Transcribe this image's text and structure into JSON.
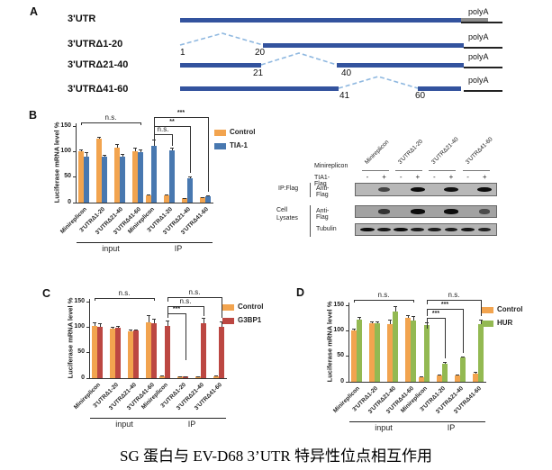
{
  "panels": {
    "a": "A",
    "b": "B",
    "c": "C",
    "d": "D"
  },
  "panel_a": {
    "rows": [
      {
        "label": "3'UTR",
        "polya": "polyA"
      },
      {
        "label": "3'UTRΔ1-20",
        "polya": "polyA",
        "n1": "1",
        "n2": "20"
      },
      {
        "label": "3'UTRΔ21-40",
        "polya": "polyA",
        "n1": "21",
        "n2": "40"
      },
      {
        "label": "3'UTRΔ41-60",
        "polya": "polyA",
        "n1": "41",
        "n2": "60"
      }
    ]
  },
  "chart_data": [
    {
      "id": "b",
      "type": "bar",
      "panel": "B",
      "title": "",
      "ylabel": "Luciferase mRNA level %",
      "yticks": [
        0,
        50,
        100,
        150
      ],
      "ylim": [
        0,
        150
      ],
      "categories": [
        "Minireplicon",
        "3'UTRΔ1-20",
        "3'UTRΔ21-40",
        "3'UTRΔ41-60"
      ],
      "groups": [
        {
          "label": "input",
          "series": [
            {
              "name": "Control",
              "color": "#F2A44F",
              "values": [
                100,
                126,
                107,
                100
              ],
              "errors": [
                4,
                3,
                7,
                8
              ]
            },
            {
              "name": "TIA-1",
              "color": "#4878B0",
              "values": [
                90,
                90,
                90,
                99
              ],
              "errors": [
                9,
                3,
                5,
                6
              ]
            }
          ]
        },
        {
          "label": "IP",
          "series": [
            {
              "name": "Control",
              "color": "#F2A44F",
              "values": [
                14,
                14,
                8,
                10
              ],
              "errors": [
                2,
                2,
                1,
                1
              ]
            },
            {
              "name": "TIA-1",
              "color": "#4878B0",
              "values": [
                111,
                102,
                48,
                12
              ],
              "errors": [
                13,
                5,
                3,
                2
              ]
            }
          ]
        }
      ],
      "legend": [
        {
          "label": "Control",
          "color": "#F2A44F"
        },
        {
          "label": "TIA-1",
          "color": "#4878B0"
        }
      ],
      "significance": [
        {
          "label": "n.s.",
          "over": "input"
        },
        {
          "label": "n.s.",
          "between": [
            "Minireplicon IP",
            "3'UTRΔ1-20 IP"
          ]
        },
        {
          "label": "**",
          "between": [
            "Minireplicon IP",
            "3'UTRΔ21-40 IP"
          ]
        },
        {
          "label": "***",
          "between": [
            "Minireplicon IP",
            "3'UTRΔ41-60 IP"
          ]
        }
      ]
    },
    {
      "id": "c",
      "type": "bar",
      "panel": "C",
      "title": "",
      "ylabel": "Luciferase mRNA level %",
      "yticks": [
        0,
        50,
        100,
        150
      ],
      "ylim": [
        0,
        150
      ],
      "categories": [
        "Minireplicon",
        "3'UTRΔ1-20",
        "3'UTRΔ21-40",
        "3'UTRΔ41-60"
      ],
      "groups": [
        {
          "label": "input",
          "series": [
            {
              "name": "Control",
              "color": "#F2A44F",
              "values": [
                102,
                97,
                92,
                109
              ],
              "errors": [
                8,
                4,
                3,
                15
              ]
            },
            {
              "name": "G3BP1",
              "color": "#BC4742",
              "values": [
                100,
                98,
                93,
                108
              ],
              "errors": [
                7,
                4,
                2,
                8
              ]
            }
          ]
        },
        {
          "label": "IP",
          "series": [
            {
              "name": "Control",
              "color": "#F2A44F",
              "values": [
                4,
                3,
                3,
                4
              ],
              "errors": [
                1,
                1,
                1,
                1
              ]
            },
            {
              "name": "G3BP1",
              "color": "#BC4742",
              "values": [
                103,
                3,
                107,
                101
              ],
              "errors": [
                10,
                1,
                12,
                10
              ]
            }
          ]
        }
      ],
      "legend": [
        {
          "label": "Control",
          "color": "#F2A44F"
        },
        {
          "label": "G3BP1",
          "color": "#BC4742"
        }
      ],
      "significance": [
        {
          "label": "n.s.",
          "over": "input"
        },
        {
          "label": "n.s.",
          "between": [
            "Minireplicon IP",
            "3'UTRΔ41-60 IP"
          ]
        },
        {
          "label": "n.s.",
          "between": [
            "Minireplicon IP",
            "3'UTRΔ21-40 IP"
          ]
        },
        {
          "label": "***",
          "between": [
            "Minireplicon IP",
            "3'UTRΔ1-20 IP"
          ]
        }
      ]
    },
    {
      "id": "d",
      "type": "bar",
      "panel": "D",
      "title": "",
      "ylabel": "Luciferase mRNA level %",
      "yticks": [
        0,
        50,
        100,
        150
      ],
      "ylim": [
        0,
        150
      ],
      "categories": [
        "Minireplicon",
        "3'UTRΔ1-20",
        "3'UTRΔ21-40",
        "3'UTRΔ41-60"
      ],
      "groups": [
        {
          "label": "input",
          "series": [
            {
              "name": "Control",
              "color": "#F2A44F",
              "values": [
                101,
                114,
                113,
                125
              ],
              "errors": [
                4,
                5,
                8,
                6
              ]
            },
            {
              "name": "HUR",
              "color": "#93B952",
              "values": [
                122,
                114,
                138,
                120
              ],
              "errors": [
                5,
                4,
                10,
                8
              ]
            }
          ]
        },
        {
          "label": "IP",
          "series": [
            {
              "name": "Control",
              "color": "#F2A44F",
              "values": [
                9,
                12,
                12,
                16
              ],
              "errors": [
                2,
                2,
                2,
                3
              ]
            },
            {
              "name": "HUR",
              "color": "#93B952",
              "values": [
                111,
                35,
                47,
                113
              ],
              "errors": [
                6,
                3,
                3,
                8
              ]
            }
          ]
        }
      ],
      "legend": [
        {
          "label": "Control",
          "color": "#F2A44F"
        },
        {
          "label": "HUR",
          "color": "#93B952"
        }
      ],
      "significance": [
        {
          "label": "n.s.",
          "over": "input"
        },
        {
          "label": "n.s.",
          "between": [
            "Minireplicon IP",
            "3'UTRΔ41-60 IP"
          ]
        },
        {
          "label": "***",
          "between": [
            "Minireplicon IP",
            "3'UTRΔ21-40 IP"
          ]
        },
        {
          "label": "***",
          "between": [
            "Minireplicon IP",
            "3'UTRΔ1-20 IP"
          ]
        }
      ]
    }
  ],
  "blot": {
    "construct_labels": [
      "Minireplicon",
      "3'UTRΔ1-20",
      "3'UTRΔ21-40",
      "3'UTRΔ41-60"
    ],
    "row_minireplicon": "Minireplicon",
    "row_tia1flag": "TIA1-Flag",
    "lane_signs": [
      "-",
      "+",
      "-",
      "+",
      "-",
      "+",
      "-",
      "+"
    ],
    "groups": [
      {
        "label": "IP:Flag"
      },
      {
        "label": "Cell Lysates"
      }
    ],
    "rows": [
      {
        "antibody": "Anti-Flag",
        "bands": [
          0,
          0.5,
          0,
          1,
          0,
          0.95,
          0,
          1
        ]
      },
      {
        "antibody": "Anti-Flag",
        "bands": [
          0,
          0.6,
          0,
          1,
          0,
          1,
          0,
          0.35
        ]
      },
      {
        "antibody": "Tubulin",
        "bands": [
          1,
          0.9,
          1,
          0.85,
          0.85,
          0.85,
          0.9,
          0.8
        ]
      }
    ]
  },
  "caption": "SG 蛋白与 EV-D68 3’UTR 特异性位点相互作用"
}
